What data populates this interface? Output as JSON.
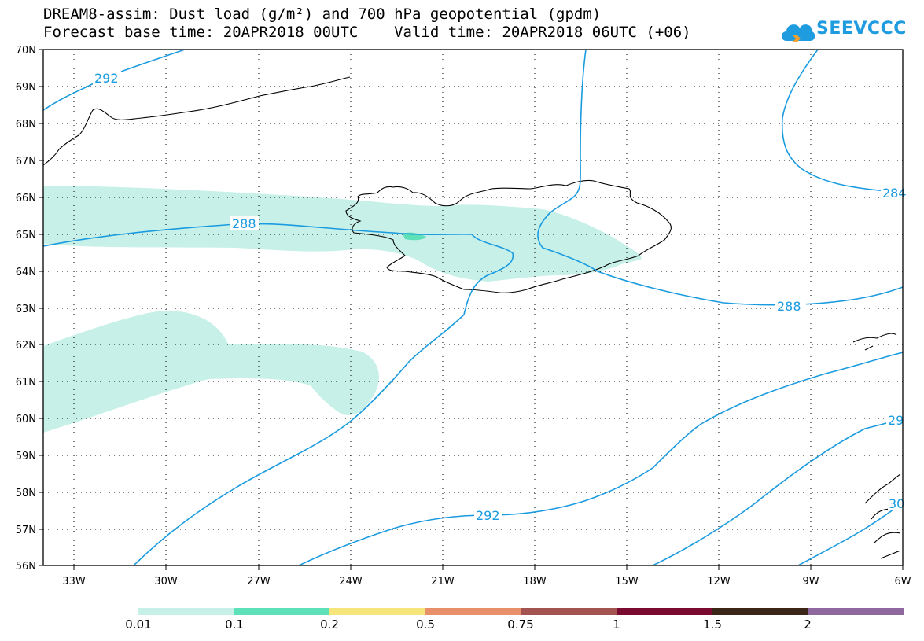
{
  "header": {
    "title_line1": "DREAM8-assim: Dust load (g/m²) and 700 hPa geopotential (gpdm)",
    "title_line2": "Forecast base time: 20APR2018 00UTC    Valid time: 20APR2018 06UTC (+06)"
  },
  "logo": {
    "text": "SEEVCCC",
    "icon": "cloud-logo-icon"
  },
  "map": {
    "lat_labels": [
      "70N",
      "69N",
      "68N",
      "67N",
      "66N",
      "65N",
      "64N",
      "63N",
      "62N",
      "61N",
      "60N",
      "59N",
      "58N",
      "57N",
      "56N"
    ],
    "lon_labels": [
      "33W",
      "30W",
      "27W",
      "24W",
      "21W",
      "18W",
      "15W",
      "12W",
      "9W",
      "6W"
    ],
    "contour_labels": [
      "292",
      "288",
      "288",
      "284",
      "292",
      "29",
      "30"
    ],
    "colors": {
      "dust_lowest": "#c6f0e8",
      "contour": "#1a9be0",
      "coast": "#000000"
    }
  },
  "colorbar": {
    "labels": [
      "0.01",
      "0.1",
      "0.2",
      "0.5",
      "0.75",
      "1",
      "1.5",
      "2"
    ],
    "colors": [
      "#c6f0e8",
      "#5ee0b8",
      "#f5e57a",
      "#e8906a",
      "#a45450",
      "#7a0a30",
      "#3b2618",
      "#9068a0"
    ]
  }
}
